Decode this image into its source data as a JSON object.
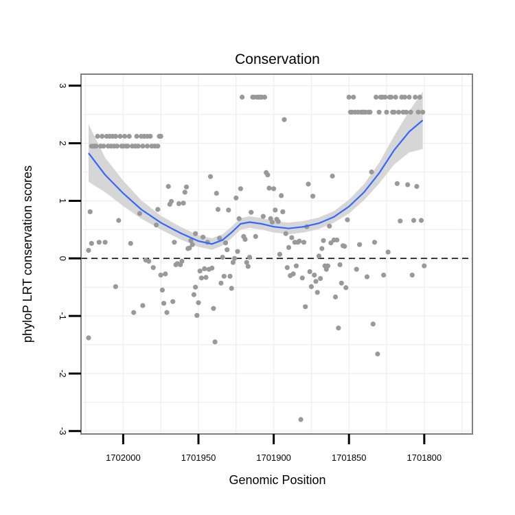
{
  "chart_data": {
    "type": "scatter",
    "title": "Conservation",
    "xlabel": "Genomic Position",
    "ylabel": "phyloP LRT conservation scores",
    "x_reversed": true,
    "xlim": [
      1702028,
      1701768
    ],
    "ylim": [
      -3.05,
      3.2
    ],
    "x_ticks": [
      1702000,
      1701950,
      1701900,
      1701850,
      1701800
    ],
    "x_tick_labels": [
      "1702000",
      "1701950",
      "1701900",
      "1701850",
      "1701800"
    ],
    "y_ticks": [
      -3,
      -2,
      -1,
      0,
      1,
      2,
      3
    ],
    "y_tick_labels": [
      "-3",
      "-2",
      "-1",
      "0",
      "1",
      "2",
      "3"
    ],
    "reference_line": {
      "y": 0,
      "style": "dashed"
    },
    "colors": {
      "points": "#999999",
      "smooth_line": "#3366ff",
      "ribbon": "#d6d6d6",
      "panel_border": "#7f7f7f",
      "grid": "#f0f0f0"
    },
    "points": [
      [
        1702023,
        -1.38
      ],
      [
        1702023,
        0.14
      ],
      [
        1702022,
        0.81
      ],
      [
        1702021,
        0.26
      ],
      [
        1702021,
        1.95
      ],
      [
        1702020,
        1.95
      ],
      [
        1702019,
        1.95
      ],
      [
        1702018,
        1.95
      ],
      [
        1702017,
        2.12
      ],
      [
        1702016,
        0.28
      ],
      [
        1702015,
        1.95
      ],
      [
        1702014,
        2.12
      ],
      [
        1702013,
        1.95
      ],
      [
        1702012,
        0.28
      ],
      [
        1702011,
        2.12
      ],
      [
        1702010,
        1.95
      ],
      [
        1702009,
        2.12
      ],
      [
        1702008,
        1.95
      ],
      [
        1702007,
        2.12
      ],
      [
        1702006,
        1.95
      ],
      [
        1702005,
        -0.49
      ],
      [
        1702005,
        2.12
      ],
      [
        1702004,
        1.95
      ],
      [
        1702003,
        0.66
      ],
      [
        1702002,
        2.12
      ],
      [
        1702001,
        1.95
      ],
      [
        1702000,
        1.95
      ],
      [
        1701999,
        2.12
      ],
      [
        1701998,
        1.95
      ],
      [
        1701997,
        1.95
      ],
      [
        1701996,
        2.12
      ],
      [
        1701995,
        0.26
      ],
      [
        1701994,
        1.95
      ],
      [
        1701993,
        -0.94
      ],
      [
        1701992,
        1.95
      ],
      [
        1701991,
        2.12
      ],
      [
        1701990,
        1.95
      ],
      [
        1701989,
        0.78
      ],
      [
        1701988,
        2.12
      ],
      [
        1701987,
        -0.82
      ],
      [
        1701987,
        1.95
      ],
      [
        1701986,
        2.12
      ],
      [
        1701985,
        -0.03
      ],
      [
        1701984,
        2.12
      ],
      [
        1701984,
        1.95
      ],
      [
        1701983,
        -0.05
      ],
      [
        1701982,
        2.12
      ],
      [
        1701981,
        1.95
      ],
      [
        1701980,
        -0.16
      ],
      [
        1701979,
        1.95
      ],
      [
        1701978,
        0.58
      ],
      [
        1701977,
        0.85
      ],
      [
        1701977,
        1.95
      ],
      [
        1701976,
        2.12
      ],
      [
        1701975,
        2.12
      ],
      [
        1701975,
        -0.29
      ],
      [
        1701974,
        -0.55
      ],
      [
        1701973,
        -0.78
      ],
      [
        1701972,
        -0.27
      ],
      [
        1701971,
        -0.94
      ],
      [
        1701970,
        1.25
      ],
      [
        1701969,
        0.94
      ],
      [
        1701968,
        0.99
      ],
      [
        1701967,
        -0.75
      ],
      [
        1701966,
        0.28
      ],
      [
        1701965,
        -0.11
      ],
      [
        1701964,
        -0.09
      ],
      [
        1701963,
        0.95
      ],
      [
        1701962,
        -0.11
      ],
      [
        1701961,
        -0.05
      ],
      [
        1701960,
        0.96
      ],
      [
        1701959,
        1.15
      ],
      [
        1701958,
        1.24
      ],
      [
        1701957,
        0.17
      ],
      [
        1701956,
        0.18
      ],
      [
        1701955,
        0.31
      ],
      [
        1701954,
        0.24
      ],
      [
        1701953,
        -0.63
      ],
      [
        1701952,
        0.43
      ],
      [
        1701952,
        -0.5
      ],
      [
        1701951,
        -0.99
      ],
      [
        1701950,
        -0.77
      ],
      [
        1701949,
        -0.22
      ],
      [
        1701948,
        -0.34
      ],
      [
        1701947,
        0.37
      ],
      [
        1701946,
        -0.18
      ],
      [
        1701945,
        -0.33
      ],
      [
        1701944,
        0.28
      ],
      [
        1701943,
        -0.19
      ],
      [
        1701942,
        1.42
      ],
      [
        1701941,
        -0.17
      ],
      [
        1701940,
        -0.87
      ],
      [
        1701939,
        -1.45
      ],
      [
        1701938,
        1.13
      ],
      [
        1701937,
        0.85
      ],
      [
        1701936,
        0.35
      ],
      [
        1701935,
        -0.43
      ],
      [
        1701934,
        0.02
      ],
      [
        1701933,
        -0.31
      ],
      [
        1701932,
        0.27
      ],
      [
        1701931,
        0.15
      ],
      [
        1701930,
        0.84
      ],
      [
        1701929,
        -0.31
      ],
      [
        1701928,
        -0.52
      ],
      [
        1701927,
        -0.07
      ],
      [
        1701926,
        0.0
      ],
      [
        1701925,
        1.05
      ],
      [
        1701924,
        0.12
      ],
      [
        1701923,
        0.69
      ],
      [
        1701922,
        1.21
      ],
      [
        1701921,
        2.8
      ],
      [
        1701920,
        0.38
      ],
      [
        1701919,
        0.33
      ],
      [
        1701918,
        -0.07
      ],
      [
        1701917,
        -0.14
      ],
      [
        1701916,
        0.02
      ],
      [
        1701915,
        0.8
      ],
      [
        1701914,
        2.8
      ],
      [
        1701913,
        2.8
      ],
      [
        1701912,
        0.38
      ],
      [
        1701911,
        2.8
      ],
      [
        1701910,
        2.8
      ],
      [
        1701909,
        2.8
      ],
      [
        1701908,
        2.8
      ],
      [
        1701907,
        0.73
      ],
      [
        1701906,
        2.8
      ],
      [
        1701905,
        1.49
      ],
      [
        1701904,
        1.45
      ],
      [
        1701903,
        1.22
      ],
      [
        1701902,
        0.69
      ],
      [
        1701901,
        0.63
      ],
      [
        1701900,
        1.21
      ],
      [
        1701899,
        0.84
      ],
      [
        1701898,
        0.68
      ],
      [
        1701897,
        0.64
      ],
      [
        1701896,
        0.07
      ],
      [
        1701895,
        1.09
      ],
      [
        1701894,
        0.81
      ],
      [
        1701893,
        2.41
      ],
      [
        1701892,
        0.43
      ],
      [
        1701891,
        -0.16
      ],
      [
        1701890,
        0.19
      ],
      [
        1701889,
        -0.3
      ],
      [
        1701888,
        0.36
      ],
      [
        1701887,
        -0.27
      ],
      [
        1701886,
        0.28
      ],
      [
        1701885,
        -0.13
      ],
      [
        1701884,
        0.28
      ],
      [
        1701883,
        0.3
      ],
      [
        1701882,
        -2.8
      ],
      [
        1701881,
        -0.34
      ],
      [
        1701880,
        0.28
      ],
      [
        1701879,
        -0.84
      ],
      [
        1701878,
        0.55
      ],
      [
        1701877,
        1.29
      ],
      [
        1701876,
        -0.23
      ],
      [
        1701875,
        -0.49
      ],
      [
        1701874,
        1.08
      ],
      [
        1701873,
        -0.29
      ],
      [
        1701872,
        -0.4
      ],
      [
        1701871,
        -0.59
      ],
      [
        1701870,
        0.04
      ],
      [
        1701869,
        -0.35
      ],
      [
        1701868,
        0.17
      ],
      [
        1701867,
        0.31
      ],
      [
        1701866,
        -0.13
      ],
      [
        1701865,
        -0.19
      ],
      [
        1701864,
        -0.13
      ],
      [
        1701863,
        0.56
      ],
      [
        1701862,
        0.27
      ],
      [
        1701861,
        1.43
      ],
      [
        1701860,
        0.32
      ],
      [
        1701859,
        -0.67
      ],
      [
        1701858,
        0.32
      ],
      [
        1701857,
        -1.21
      ],
      [
        1701856,
        -0.11
      ],
      [
        1701855,
        -0.43
      ],
      [
        1701854,
        0.22
      ],
      [
        1701853,
        0.21
      ],
      [
        1701852,
        -0.51
      ],
      [
        1701851,
        0.67
      ],
      [
        1701850,
        2.8
      ],
      [
        1701849,
        2.54
      ],
      [
        1701848,
        2.54
      ],
      [
        1701847,
        2.8
      ],
      [
        1701846,
        2.54
      ],
      [
        1701845,
        -0.19
      ],
      [
        1701844,
        2.54
      ],
      [
        1701843,
        0.24
      ],
      [
        1701842,
        2.54
      ],
      [
        1701841,
        2.54
      ],
      [
        1701840,
        2.54
      ],
      [
        1701839,
        2.54
      ],
      [
        1701838,
        -0.32
      ],
      [
        1701837,
        2.54
      ],
      [
        1701836,
        2.54
      ],
      [
        1701835,
        1.5
      ],
      [
        1701834,
        -1.14
      ],
      [
        1701833,
        0.28
      ],
      [
        1701832,
        2.8
      ],
      [
        1701831,
        -1.66
      ],
      [
        1701830,
        2.54
      ],
      [
        1701829,
        2.8
      ],
      [
        1701828,
        2.8
      ],
      [
        1701827,
        -0.29
      ],
      [
        1701826,
        2.8
      ],
      [
        1701825,
        2.54
      ],
      [
        1701824,
        0.11
      ],
      [
        1701823,
        2.8
      ],
      [
        1701822,
        2.8
      ],
      [
        1701821,
        2.54
      ],
      [
        1701820,
        2.54
      ],
      [
        1701819,
        2.8
      ],
      [
        1701818,
        1.3
      ],
      [
        1701817,
        2.54
      ],
      [
        1701816,
        0.65
      ],
      [
        1701815,
        2.8
      ],
      [
        1701814,
        2.54
      ],
      [
        1701813,
        2.8
      ],
      [
        1701812,
        2.54
      ],
      [
        1701811,
        1.28
      ],
      [
        1701810,
        2.8
      ],
      [
        1701809,
        2.54
      ],
      [
        1701808,
        -0.29
      ],
      [
        1701807,
        0.66
      ],
      [
        1701806,
        2.8
      ],
      [
        1701805,
        1.25
      ],
      [
        1701804,
        2.54
      ],
      [
        1701803,
        2.8
      ],
      [
        1701802,
        0.66
      ],
      [
        1701801,
        2.54
      ],
      [
        1701800,
        -0.13
      ]
    ],
    "smooth_curve": [
      [
        1702023,
        1.83
      ],
      [
        1702012,
        1.45
      ],
      [
        1702000,
        1.13
      ],
      [
        1701988,
        0.85
      ],
      [
        1701975,
        0.62
      ],
      [
        1701962,
        0.44
      ],
      [
        1701950,
        0.3
      ],
      [
        1701941,
        0.25
      ],
      [
        1701934,
        0.32
      ],
      [
        1701928,
        0.45
      ],
      [
        1701922,
        0.6
      ],
      [
        1701916,
        0.63
      ],
      [
        1701908,
        0.6
      ],
      [
        1701900,
        0.55
      ],
      [
        1701890,
        0.52
      ],
      [
        1701880,
        0.55
      ],
      [
        1701870,
        0.61
      ],
      [
        1701860,
        0.72
      ],
      [
        1701850,
        0.9
      ],
      [
        1701840,
        1.15
      ],
      [
        1701830,
        1.48
      ],
      [
        1701820,
        1.88
      ],
      [
        1701810,
        2.2
      ],
      [
        1701801,
        2.4
      ]
    ],
    "ribbon_halfwidth": [
      0.5,
      0.3,
      0.22,
      0.16,
      0.12,
      0.11,
      0.1,
      0.1,
      0.1,
      0.1,
      0.1,
      0.1,
      0.1,
      0.1,
      0.1,
      0.1,
      0.1,
      0.1,
      0.12,
      0.14,
      0.18,
      0.25,
      0.36,
      0.5
    ]
  }
}
